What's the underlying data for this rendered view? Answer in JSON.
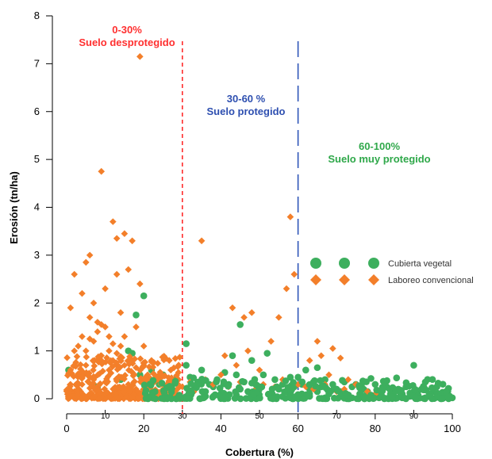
{
  "chart_data": {
    "type": "scatter",
    "xlabel": "Cobertura (%)",
    "ylabel": "Erosión (tn/ha)",
    "xlim": [
      0,
      100
    ],
    "ylim": [
      0,
      8
    ],
    "x_ticks_major": [
      {
        "value": 0,
        "label": "0"
      },
      {
        "value": 20,
        "label": "20"
      },
      {
        "value": 40,
        "label": "40"
      },
      {
        "value": 60,
        "label": "60"
      },
      {
        "value": 80,
        "label": "80"
      },
      {
        "value": 100,
        "label": "100"
      }
    ],
    "x_ticks_minor": [
      {
        "value": 10,
        "label": "10"
      },
      {
        "value": 30,
        "label": "30"
      },
      {
        "value": 50,
        "label": "50"
      },
      {
        "value": 70,
        "label": "70"
      },
      {
        "value": 90,
        "label": "90"
      }
    ],
    "y_ticks": [
      "0",
      "1",
      "2",
      "3",
      "4",
      "5",
      "6",
      "7",
      "8"
    ],
    "threshold_lines": [
      {
        "x": 30,
        "color": "#ff2b2b",
        "style": "dashed"
      },
      {
        "x": 60,
        "color": "#2e55b8",
        "style": "long-dashed"
      }
    ],
    "annotations": [
      {
        "line1": "0-30%",
        "line2": "Suelo desprotegido",
        "color": "#ff3030"
      },
      {
        "line1": "30-60 %",
        "line2": "Suelo protegido",
        "color": "#2e4fb0"
      },
      {
        "line1": "60-100%",
        "line2": "Suelo muy protegido",
        "color": "#2fa84a"
      }
    ],
    "legend_position": "right",
    "series": [
      {
        "name": "Cubierta vegetal",
        "marker": "circle",
        "color": "#3daf5e",
        "points": [
          [
            0.5,
            0.6
          ],
          [
            8,
            0.25
          ],
          [
            14,
            0.4
          ],
          [
            16,
            1.0
          ],
          [
            17,
            0.95
          ],
          [
            18,
            1.75
          ],
          [
            19,
            0.5
          ],
          [
            20,
            2.15
          ],
          [
            21,
            0.35
          ],
          [
            22,
            0.6
          ],
          [
            24,
            0.3
          ],
          [
            25,
            0.5
          ],
          [
            26,
            0.2
          ],
          [
            28,
            0.4
          ],
          [
            31,
            1.15
          ],
          [
            31,
            0.7
          ],
          [
            32,
            0.45
          ],
          [
            33,
            0.2
          ],
          [
            34,
            0.35
          ],
          [
            35,
            0.6
          ],
          [
            36,
            0.15
          ],
          [
            37,
            0.3
          ],
          [
            38,
            0.25
          ],
          [
            39,
            0.4
          ],
          [
            40,
            0.1
          ],
          [
            41,
            0.55
          ],
          [
            42,
            0.3
          ],
          [
            43,
            0.9
          ],
          [
            44,
            0.5
          ],
          [
            45,
            1.55
          ],
          [
            45,
            0.2
          ],
          [
            46,
            0.35
          ],
          [
            47,
            0.15
          ],
          [
            48,
            0.8
          ],
          [
            49,
            0.3
          ],
          [
            50,
            0.25
          ],
          [
            51,
            0.5
          ],
          [
            52,
            0.95
          ],
          [
            53,
            0.1
          ],
          [
            54,
            0.4
          ],
          [
            55,
            0.2
          ],
          [
            56,
            0.3
          ],
          [
            57,
            0.15
          ],
          [
            58,
            0.45
          ],
          [
            59,
            0.25
          ],
          [
            60,
            0.45
          ],
          [
            61,
            0.3
          ],
          [
            61,
            0.1
          ],
          [
            62,
            0.6
          ],
          [
            63,
            0.2
          ],
          [
            64,
            0.35
          ],
          [
            65,
            0.65
          ],
          [
            65,
            0.15
          ],
          [
            66,
            0.25
          ],
          [
            67,
            0.4
          ],
          [
            68,
            0.1
          ],
          [
            69,
            0.3
          ],
          [
            70,
            0.2
          ],
          [
            71,
            0.15
          ],
          [
            72,
            0.35
          ],
          [
            73,
            0.05
          ],
          [
            74,
            0.25
          ],
          [
            75,
            0.3
          ],
          [
            76,
            0.1
          ],
          [
            77,
            0.2
          ],
          [
            78,
            0.15
          ],
          [
            79,
            0.05
          ],
          [
            80,
            0.3
          ],
          [
            81,
            0.1
          ],
          [
            82,
            0.2
          ],
          [
            83,
            0.25
          ],
          [
            84,
            0.05
          ],
          [
            85,
            0.15
          ],
          [
            86,
            0.2
          ],
          [
            87,
            0.1
          ],
          [
            88,
            0.25
          ],
          [
            89,
            0.05
          ],
          [
            90,
            0.7
          ],
          [
            90,
            0.15
          ],
          [
            91,
            0.1
          ],
          [
            92,
            0.2
          ],
          [
            93,
            0.35
          ],
          [
            94,
            0.05
          ],
          [
            95,
            0.15
          ],
          [
            96,
            0.1
          ],
          [
            97,
            0.05
          ],
          [
            98,
            0.08
          ],
          [
            99,
            0.03
          ],
          [
            100,
            0.02
          ],
          [
            36,
            0.05
          ],
          [
            44,
            0.08
          ],
          [
            53,
            0.05
          ],
          [
            58,
            0.02
          ],
          [
            63,
            0.05
          ],
          [
            67,
            0.02
          ],
          [
            71,
            0.05
          ],
          [
            74,
            0.02
          ],
          [
            77,
            0.05
          ],
          [
            81,
            0.02
          ],
          [
            84,
            0.18
          ],
          [
            87,
            0.02
          ],
          [
            89,
            0.12
          ],
          [
            93,
            0.02
          ],
          [
            96,
            0.25
          ]
        ]
      },
      {
        "name": "Laboreo convencional",
        "marker": "diamond",
        "color": "#f37f2a",
        "points": [
          [
            1,
            1.9
          ],
          [
            2,
            2.6
          ],
          [
            3,
            1.1
          ],
          [
            4,
            2.2
          ],
          [
            5,
            2.85
          ],
          [
            6,
            3.0
          ],
          [
            7,
            2.0
          ],
          [
            8,
            1.6
          ],
          [
            9,
            4.75
          ],
          [
            10,
            2.3
          ],
          [
            11,
            1.3
          ],
          [
            12,
            3.7
          ],
          [
            13,
            2.6
          ],
          [
            14,
            1.8
          ],
          [
            15,
            3.45
          ],
          [
            16,
            2.7
          ],
          [
            17,
            3.3
          ],
          [
            18,
            1.5
          ],
          [
            19,
            7.15
          ],
          [
            19,
            2.4
          ],
          [
            20,
            1.1
          ],
          [
            13,
            3.35
          ],
          [
            8,
            1.4
          ],
          [
            6,
            1.7
          ],
          [
            35,
            3.3
          ],
          [
            58,
            3.8
          ],
          [
            59,
            2.6
          ],
          [
            57,
            2.3
          ],
          [
            43,
            1.9
          ],
          [
            46,
            1.7
          ],
          [
            48,
            1.8
          ],
          [
            53,
            1.2
          ],
          [
            55,
            1.7
          ],
          [
            41,
            0.9
          ],
          [
            44,
            0.7
          ],
          [
            47,
            1.0
          ],
          [
            50,
            0.6
          ],
          [
            63,
            0.8
          ],
          [
            65,
            1.2
          ],
          [
            66,
            0.9
          ],
          [
            69,
            1.05
          ],
          [
            71,
            0.85
          ],
          [
            68,
            0.5
          ],
          [
            73,
            0.4
          ],
          [
            75,
            0.3
          ],
          [
            36,
            0.4
          ],
          [
            38,
            0.3
          ],
          [
            40,
            0.5
          ],
          [
            42,
            0.25
          ],
          [
            45,
            0.35
          ],
          [
            49,
            0.2
          ],
          [
            51,
            0.3
          ],
          [
            54,
            0.25
          ],
          [
            56,
            0.4
          ],
          [
            58,
            0.2
          ],
          [
            60,
            0.3
          ],
          [
            62,
            0.25
          ],
          [
            64,
            0.2
          ],
          [
            67,
            0.3
          ],
          [
            70,
            0.15
          ],
          [
            72,
            0.2
          ],
          [
            76,
            0.1
          ],
          [
            78,
            0.15
          ],
          [
            80,
            0.1
          ],
          [
            82,
            0.05
          ],
          [
            24,
            0.5
          ],
          [
            26,
            0.3
          ],
          [
            27,
            0.6
          ],
          [
            29,
            0.4
          ],
          [
            30,
            0.25
          ],
          [
            32,
            0.35
          ],
          [
            33,
            0.15
          ],
          [
            22,
            0.8
          ],
          [
            23,
            0.4
          ],
          [
            25,
            0.2
          ],
          [
            28,
            0.15
          ],
          [
            3,
            0.5
          ],
          [
            4,
            0.3
          ],
          [
            5,
            0.7
          ],
          [
            7,
            0.4
          ],
          [
            9,
            0.9
          ],
          [
            10,
            0.35
          ],
          [
            11,
            0.6
          ],
          [
            12,
            0.8
          ],
          [
            14,
            0.45
          ],
          [
            15,
            0.7
          ],
          [
            16,
            0.3
          ],
          [
            17,
            0.55
          ],
          [
            18,
            0.65
          ],
          [
            20,
            0.4
          ],
          [
            21,
            0.2
          ],
          [
            2,
            0.15
          ],
          [
            6,
            0.1
          ],
          [
            8,
            0.2
          ],
          [
            13,
            0.15
          ],
          [
            15,
            0.1
          ],
          [
            19,
            0.1
          ],
          [
            1,
            0.3
          ],
          [
            3,
            0.05
          ],
          [
            10,
            0.05
          ],
          [
            12,
            0.1
          ],
          [
            16,
            0.05
          ],
          [
            18,
            0.2
          ],
          [
            21,
            0.5
          ],
          [
            7,
            1.2
          ],
          [
            9,
            1.55
          ],
          [
            11,
            1.0
          ],
          [
            13,
            0.95
          ],
          [
            14,
            1.1
          ],
          [
            4,
            1.3
          ],
          [
            5,
            1.0
          ],
          [
            17,
            0.8
          ],
          [
            2,
            1.0
          ],
          [
            6,
            1.25
          ],
          [
            10,
            1.5
          ],
          [
            12,
            1.15
          ],
          [
            15,
            1.3
          ],
          [
            20,
            0.7
          ],
          [
            23,
            0.1
          ],
          [
            26,
            0.05
          ]
        ]
      }
    ]
  }
}
